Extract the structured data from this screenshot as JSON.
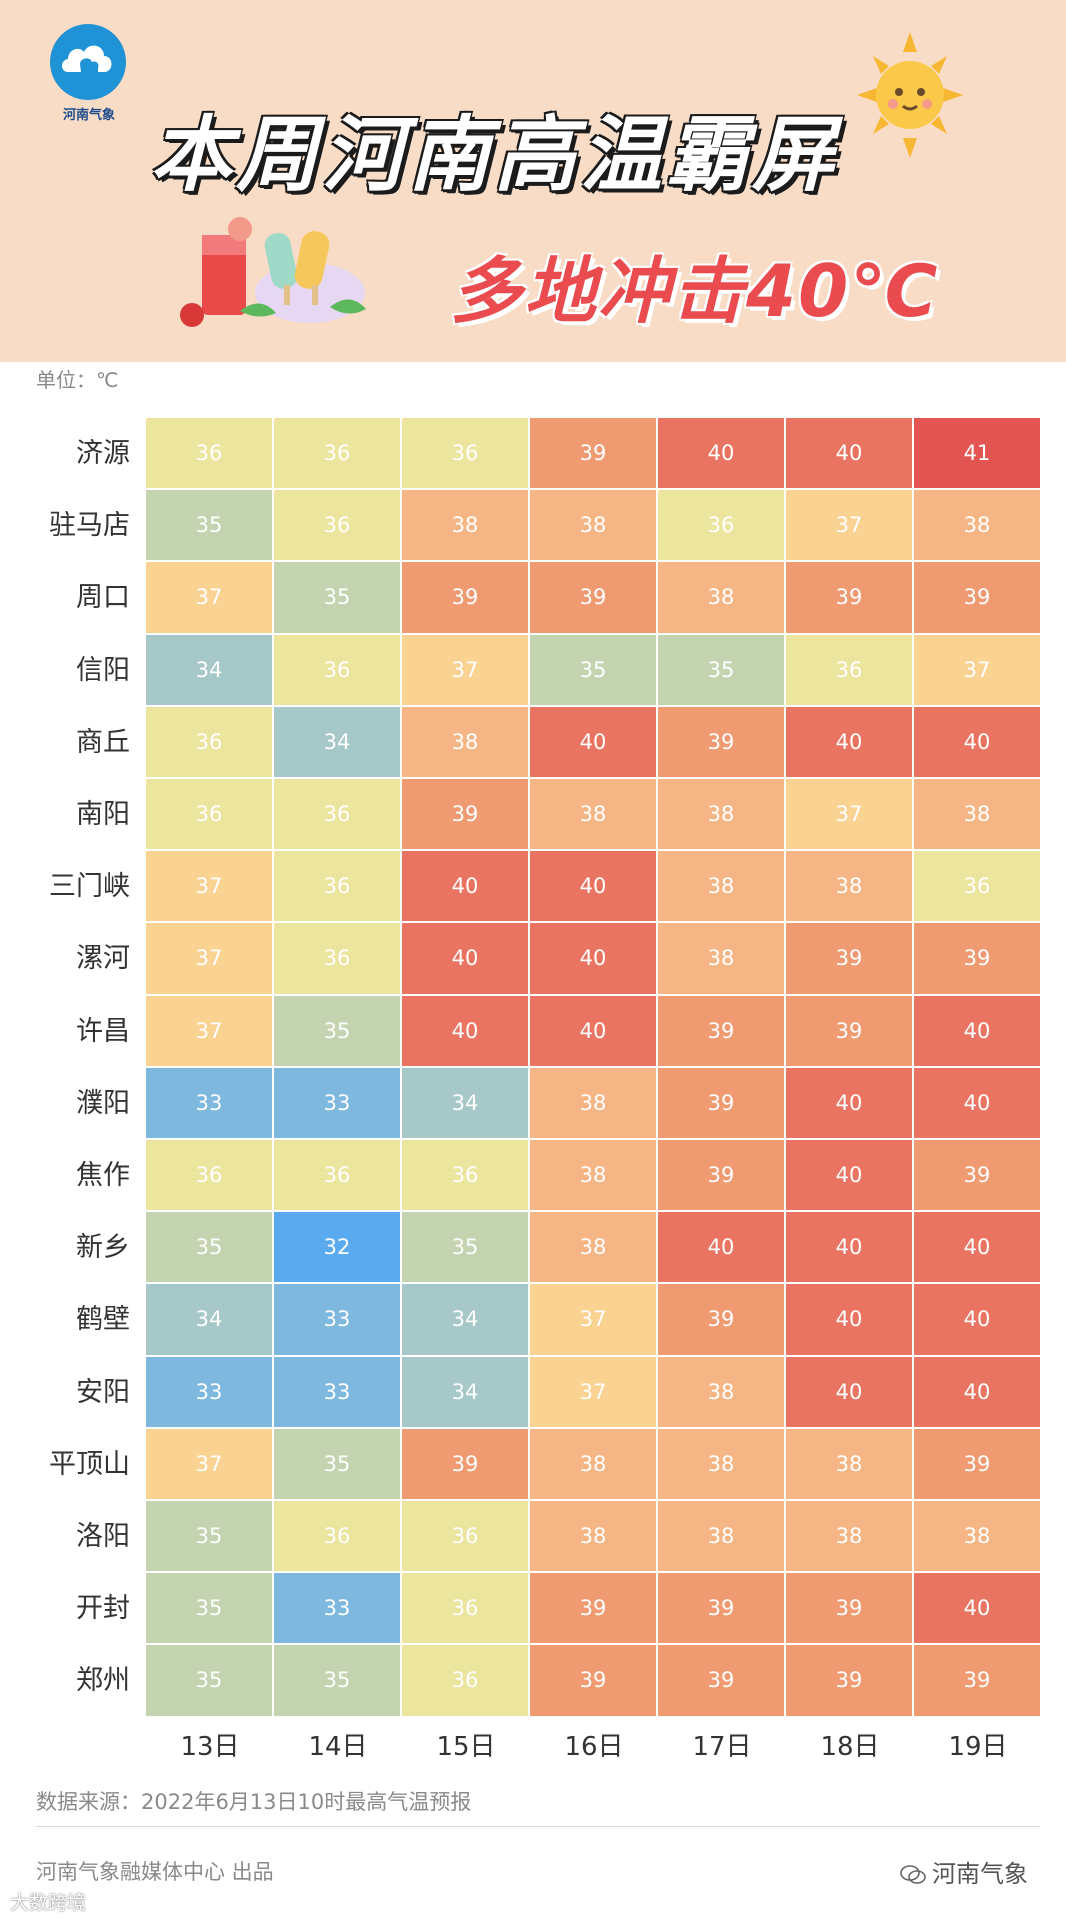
{
  "header": {
    "logo_text": "河南气象",
    "title": "本周河南高温霸屏",
    "subtitle": "多地冲击40℃"
  },
  "unit_label": "单位：℃",
  "chart_data": {
    "type": "heatmap",
    "columns": [
      "13日",
      "14日",
      "15日",
      "16日",
      "17日",
      "18日",
      "19日"
    ],
    "rows": [
      "济源",
      "驻马店",
      "周口",
      "信阳",
      "商丘",
      "南阳",
      "三门峡",
      "漯河",
      "许昌",
      "濮阳",
      "焦作",
      "新乡",
      "鹤壁",
      "安阳",
      "平顶山",
      "洛阳",
      "开封",
      "郑州"
    ],
    "values": [
      [
        36,
        36,
        36,
        39,
        40,
        40,
        41
      ],
      [
        35,
        36,
        38,
        38,
        36,
        37,
        38
      ],
      [
        37,
        35,
        39,
        39,
        38,
        39,
        39
      ],
      [
        34,
        36,
        37,
        35,
        35,
        36,
        37
      ],
      [
        36,
        34,
        38,
        40,
        39,
        40,
        40
      ],
      [
        36,
        36,
        39,
        38,
        38,
        37,
        38
      ],
      [
        37,
        36,
        40,
        40,
        38,
        38,
        36
      ],
      [
        37,
        36,
        40,
        40,
        38,
        39,
        39
      ],
      [
        37,
        35,
        40,
        40,
        39,
        39,
        40
      ],
      [
        33,
        33,
        34,
        38,
        39,
        40,
        40
      ],
      [
        36,
        36,
        36,
        38,
        39,
        40,
        39
      ],
      [
        35,
        32,
        35,
        38,
        40,
        40,
        40
      ],
      [
        34,
        33,
        34,
        37,
        39,
        40,
        40
      ],
      [
        33,
        33,
        34,
        37,
        38,
        40,
        40
      ],
      [
        37,
        35,
        39,
        38,
        38,
        38,
        39
      ],
      [
        35,
        36,
        36,
        38,
        38,
        38,
        38
      ],
      [
        35,
        33,
        36,
        39,
        39,
        39,
        40
      ],
      [
        35,
        35,
        36,
        39,
        39,
        39,
        39
      ]
    ],
    "color_scale": {
      "32": "#5aaaf0",
      "33": "#7fb8de",
      "34": "#a6c8c9",
      "35": "#c5d4b0",
      "36": "#ebe59e",
      "37": "#fad393",
      "38": "#f6b584",
      "39": "#f09a72",
      "40": "#ea7462",
      "41": "#e35552"
    }
  },
  "footer": {
    "source": "数据来源：2022年6月13日10时最高气温预报",
    "producer": "河南气象融媒体中心 出品",
    "wechat": "河南气象",
    "watermark": "大数跨境"
  }
}
